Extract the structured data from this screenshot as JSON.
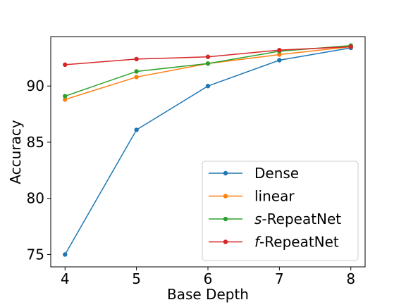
{
  "chart_data": {
    "type": "line",
    "xlabel": "Base Depth",
    "ylabel": "Accuracy",
    "x": [
      4,
      5,
      6,
      7,
      8
    ],
    "xlim": [
      3.8,
      8.2
    ],
    "ylim": [
      73.9,
      94.4
    ],
    "xticks": [
      4,
      5,
      6,
      7,
      8
    ],
    "yticks": [
      75,
      80,
      85,
      90
    ],
    "grid": false,
    "legend_position": "lower-right",
    "series": [
      {
        "name": "Dense",
        "name_prefix": "",
        "name_suffix": "Dense",
        "color": "#1f77b4",
        "values": [
          75.0,
          86.1,
          90.0,
          92.3,
          93.4
        ]
      },
      {
        "name": "linear",
        "name_prefix": "",
        "name_suffix": "linear",
        "color": "#ff7f0e",
        "values": [
          88.8,
          90.8,
          92.0,
          92.8,
          93.5
        ]
      },
      {
        "name": "s-RepeatNet",
        "name_prefix": "s",
        "name_suffix": "-RepeatNet",
        "color": "#2ca02c",
        "values": [
          89.1,
          91.3,
          92.0,
          93.1,
          93.6
        ]
      },
      {
        "name": "f-RepeatNet",
        "name_prefix": "f",
        "name_suffix": "-RepeatNet",
        "color": "#d62728",
        "values": [
          91.9,
          92.4,
          92.6,
          93.2,
          93.5
        ]
      }
    ]
  }
}
